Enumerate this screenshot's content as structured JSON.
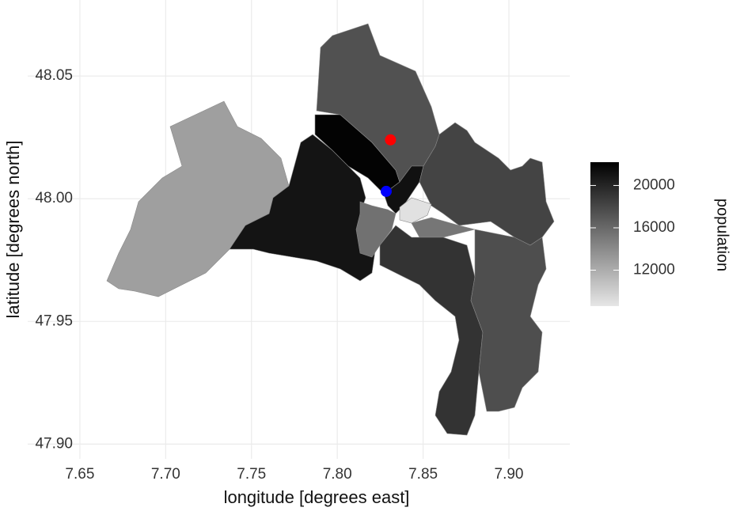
{
  "chart_data": {
    "type": "choropleth",
    "xlabel": "longitude [degrees east]",
    "ylabel": "latitude [degrees north]",
    "xlim": [
      7.6196,
      7.9355
    ],
    "xticks": [
      7.65,
      {
        "value": 7.7,
        "label": "7.70"
      },
      7.75,
      {
        "value": 7.8,
        "label": "7.80"
      },
      7.85,
      {
        "value": 7.9,
        "label": "7.90"
      }
    ],
    "ylim": [
      47.894,
      48.081
    ],
    "yticks": [
      {
        "value": 47.9,
        "label": "47.90"
      },
      47.95,
      {
        "value": 48,
        "label": "48.00"
      },
      48.05
    ],
    "grid": true,
    "values": [
      12800,
      21000,
      22000,
      17400,
      21200,
      18200,
      15500,
      8900,
      15200,
      19200,
      17600
    ],
    "colorbar": {
      "title": "population",
      "lim": [
        8600,
        22200
      ],
      "ticks": [
        12000,
        16000,
        20000
      ],
      "low": "#e6e6e6",
      "high": "#000000"
    },
    "points": [
      {
        "color": "#ff0000",
        "x": 7.831,
        "y": 48.024
      },
      {
        "color": "#0000ff",
        "x": 7.8285,
        "y": 48.003
      }
    ]
  }
}
